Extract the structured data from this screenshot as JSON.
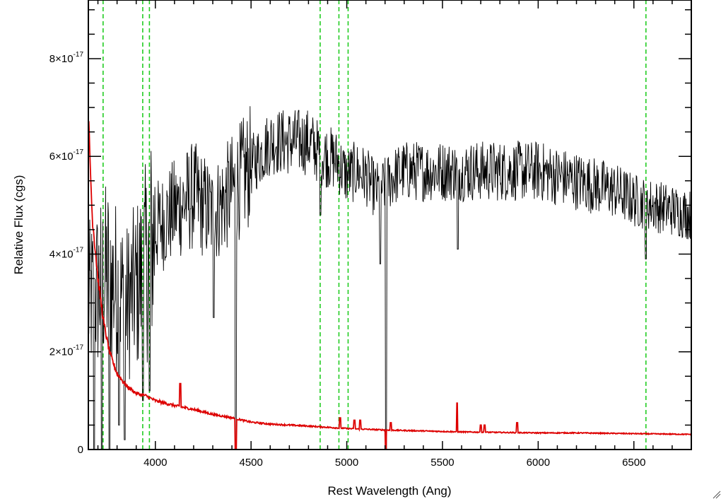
{
  "chart_data": {
    "type": "line",
    "title": "",
    "xlabel": "Rest Wavelength (Ang)",
    "ylabel": "Relative Flux (cgs)",
    "xlim": [
      3650,
      6800
    ],
    "ylim": [
      0,
      9.2e-17
    ],
    "x_ticks": [
      {
        "value": 4000,
        "label": "4000"
      },
      {
        "value": 4500,
        "label": "4500"
      },
      {
        "value": 5000,
        "label": "5000"
      },
      {
        "value": 5500,
        "label": "5500"
      },
      {
        "value": 6000,
        "label": "6000"
      },
      {
        "value": 6500,
        "label": "6500"
      }
    ],
    "y_ticks": [
      {
        "value": 0,
        "base": "0",
        "exp": ""
      },
      {
        "value": 2e-17,
        "base": "2×10",
        "exp": "-17"
      },
      {
        "value": 4e-17,
        "base": "4×10",
        "exp": "-17"
      },
      {
        "value": 6e-17,
        "base": "6×10",
        "exp": "-17"
      },
      {
        "value": 8e-17,
        "base": "8×10",
        "exp": "-17"
      }
    ],
    "grid": false,
    "series": [
      {
        "color": "#000000",
        "style": "noisy spectrum",
        "x": [
          3650,
          3700,
          3750,
          3800,
          3850,
          3900,
          3950,
          4000,
          4100,
          4200,
          4300,
          4400,
          4500,
          4600,
          4700,
          4800,
          4850,
          4900,
          4950,
          5000,
          5050,
          5100,
          5150,
          5200,
          5250,
          5300,
          5400,
          5500,
          5600,
          5700,
          5800,
          5900,
          6000,
          6100,
          6200,
          6300,
          6400,
          6500,
          6600,
          6700,
          6800
        ],
        "values": [
          3e-17,
          3.3e-17,
          3.6e-17,
          3.3e-17,
          3e-17,
          3.3e-17,
          3.8e-17,
          4.5e-17,
          4.9e-17,
          5.2e-17,
          4.8e-17,
          5.3e-17,
          5.8e-17,
          6.3e-17,
          6.3e-17,
          6.3e-17,
          6.1e-17,
          6e-17,
          5.9e-17,
          5.6e-17,
          5.7e-17,
          5.6e-17,
          5.3e-17,
          5.4e-17,
          5.6e-17,
          5.7e-17,
          5.7e-17,
          5.7e-17,
          5.7e-17,
          5.7e-17,
          5.7e-17,
          5.7e-17,
          5.7e-17,
          5.6e-17,
          5.5e-17,
          5.4e-17,
          5.3e-17,
          5.1e-17,
          5e-17,
          4.9e-17,
          4.8e-17
        ],
        "dips": [
          {
            "x": 3680,
            "min": 0
          },
          {
            "x": 3720,
            "min": 0
          },
          {
            "x": 3760,
            "min": 0
          },
          {
            "x": 3810,
            "min": 5e-18
          },
          {
            "x": 3840,
            "min": 2e-18
          },
          {
            "x": 3935,
            "min": 1e-17
          },
          {
            "x": 3970,
            "min": 1.2e-17
          },
          {
            "x": 4305,
            "min": 2.7e-17
          },
          {
            "x": 4420,
            "min": 0
          },
          {
            "x": 4862,
            "min": 4.8e-17
          },
          {
            "x": 5175,
            "min": 3.8e-17
          },
          {
            "x": 5204,
            "min": 0
          },
          {
            "x": 5580,
            "min": 4.1e-17
          },
          {
            "x": 6563,
            "min": 3.9e-17
          }
        ]
      },
      {
        "color": "#dd0000",
        "style": "error spectrum",
        "x": [
          3650,
          3670,
          3700,
          3730,
          3760,
          3800,
          3850,
          3900,
          3950,
          4000,
          4100,
          4200,
          4300,
          4400,
          4500,
          4600,
          4800,
          5000,
          5200,
          5400,
          5600,
          5800,
          6000,
          6200,
          6400,
          6600,
          6800
        ],
        "values": [
          6.8e-17,
          4.8e-17,
          3.5e-17,
          2.6e-17,
          2e-17,
          1.55e-17,
          1.3e-17,
          1.15e-17,
          1.1e-17,
          1e-17,
          9e-18,
          8.2e-18,
          7.2e-18,
          6.5e-18,
          5.6e-18,
          5.2e-18,
          4.8e-18,
          4.3e-18,
          4e-18,
          3.8e-18,
          3.6e-18,
          3.5e-18,
          3.4e-18,
          3.4e-18,
          3.3e-18,
          3.2e-18,
          3.1e-18
        ],
        "spikes": [
          {
            "x": 4130,
            "peak": 1.35e-17
          },
          {
            "x": 4420,
            "peak": 9.5e-18
          },
          {
            "x": 4420,
            "peak": -1e-18
          },
          {
            "x": 4965,
            "peak": 6.5e-18
          },
          {
            "x": 5040,
            "peak": 6e-18
          },
          {
            "x": 5070,
            "peak": 6e-18
          },
          {
            "x": 5204,
            "peak": -1e-18
          },
          {
            "x": 5230,
            "peak": 5.5e-18
          },
          {
            "x": 5577,
            "peak": 9.5e-18
          },
          {
            "x": 5700,
            "peak": 5e-18
          },
          {
            "x": 5720,
            "peak": 5e-18
          },
          {
            "x": 5890,
            "peak": 5.5e-18
          }
        ]
      }
    ],
    "vlines": {
      "color": "#22cc22",
      "style": "dashed",
      "x": [
        3727,
        3934,
        3969,
        4861,
        4959,
        5007,
        6563
      ]
    }
  }
}
